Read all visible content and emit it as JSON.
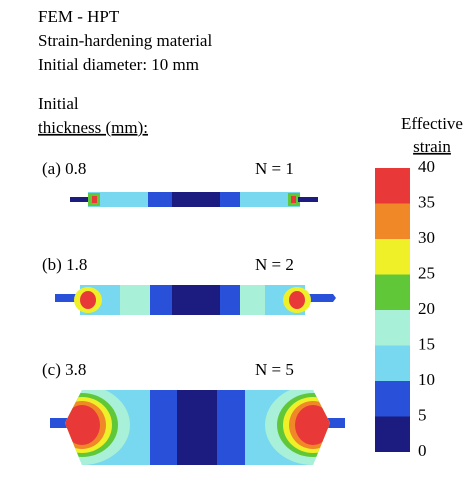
{
  "header": {
    "lines": [
      "FEM - HPT",
      "Strain-hardening material",
      "Initial diameter: 10 mm"
    ]
  },
  "thickness_label": {
    "line1": "Initial",
    "line2": "thickness (mm):"
  },
  "colorbar": {
    "title1": "Effective",
    "title2": "strain",
    "ticks": [
      0,
      5,
      10,
      15,
      20,
      25,
      30,
      35,
      40
    ],
    "colors": [
      "#1c1c80",
      "#2850d8",
      "#78d8f0",
      "#a8f0d8",
      "#60c838",
      "#f0f028",
      "#f08828",
      "#e83838"
    ]
  },
  "samples": [
    {
      "label": "(a) 0.8",
      "n": "N = 1"
    },
    {
      "label": "(b) 1.8",
      "n": "N = 2"
    },
    {
      "label": "(c) 3.8",
      "n": "N = 5"
    }
  ]
}
